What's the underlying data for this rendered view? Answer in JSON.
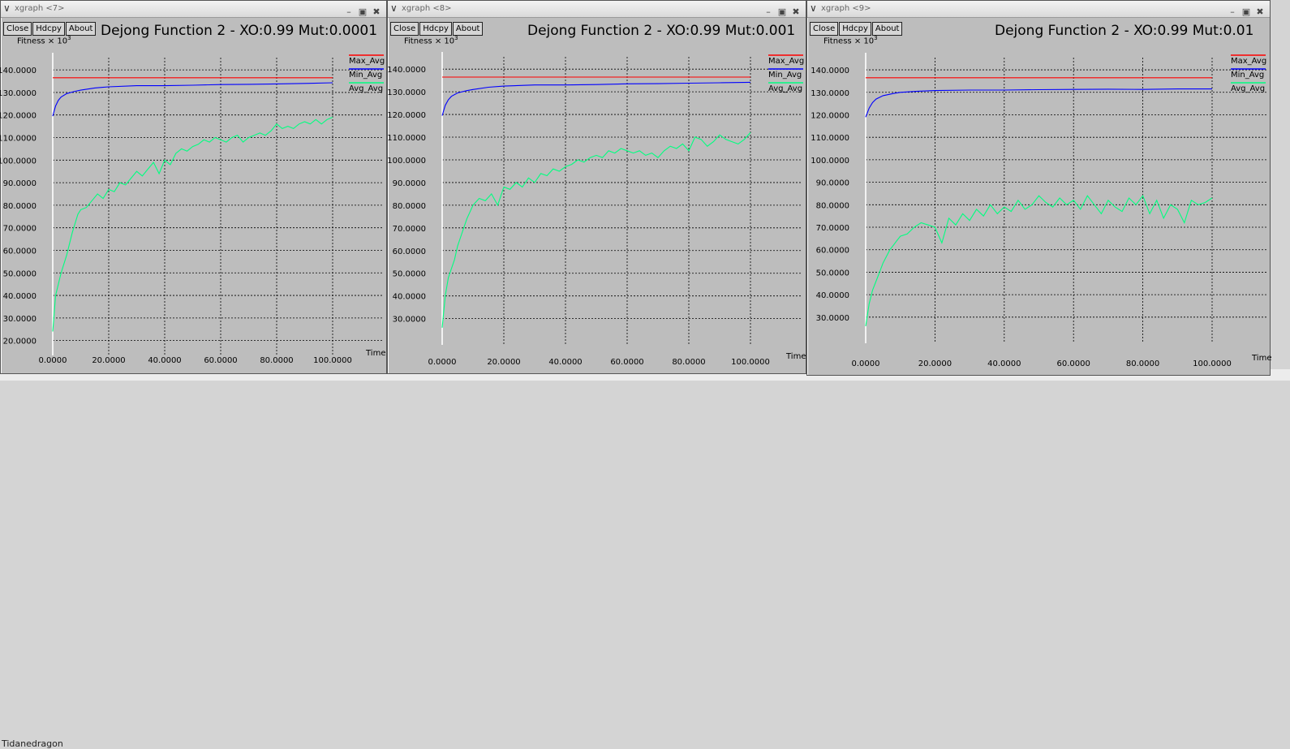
{
  "colors": {
    "max": "#ff0000",
    "min": "#0000ff",
    "avg": "#00ff80",
    "grid": "#000000",
    "bg": "#bdbdbd"
  },
  "background_text": "Tidanedragon",
  "windows": [
    {
      "title": "xgraph <7>",
      "buttons": [
        "Close",
        "Hdcpy",
        "About"
      ],
      "titlebar_icons": [
        "minimize-icon",
        "maximize-icon",
        "close-icon"
      ],
      "plot_title": "Dejong Function 2 - XO:0.99 Mut:0.0001",
      "chart_data": {
        "type": "line",
        "title": "Dejong Function 2 - XO:0.99 Mut:0.0001",
        "ylabel": "Fitness × 10^3",
        "xlabel": "Time",
        "ylim": [
          17.0,
          144.0
        ],
        "xlim": [
          0,
          100
        ],
        "xticks": [
          "0.0000",
          "20.0000",
          "40.0000",
          "60.0000",
          "80.0000",
          "100.0000"
        ],
        "yticks": [
          "20.0000",
          "30.0000",
          "40.0000",
          "50.0000",
          "60.0000",
          "70.0000",
          "80.0000",
          "90.0000",
          "100.0000",
          "110.0000",
          "120.0000",
          "130.0000",
          "140.0000"
        ],
        "grid": true,
        "legend_position": "right",
        "series": [
          {
            "name": "Max_Avg",
            "color": "#ff0000",
            "x": [
              0,
              100
            ],
            "y": [
              136.5,
              136.5
            ]
          },
          {
            "name": "Min_Avg",
            "color": "#0000ff",
            "x": [
              0,
              1,
              2,
              3,
              5,
              8,
              10,
              15,
              20,
              30,
              40,
              50,
              60,
              70,
              80,
              90,
              100
            ],
            "y": [
              119.5,
              124,
              126.5,
              128,
              129.5,
              130.5,
              131,
              132,
              132.5,
              133,
              133,
              133.2,
              133.5,
              133.6,
              133.8,
              134,
              134.3
            ]
          },
          {
            "name": "Avg_Avg",
            "color": "#00ff80",
            "x": [
              0,
              1,
              2,
              3,
              4,
              5,
              6,
              7,
              8,
              9,
              10,
              12,
              14,
              16,
              18,
              20,
              22,
              24,
              26,
              28,
              30,
              32,
              34,
              36,
              38,
              40,
              42,
              44,
              46,
              48,
              50,
              52,
              54,
              56,
              58,
              60,
              62,
              64,
              66,
              68,
              70,
              72,
              74,
              76,
              78,
              80,
              82,
              84,
              86,
              88,
              90,
              92,
              94,
              96,
              98,
              100
            ],
            "y": [
              24,
              40,
              45,
              50,
              54,
              58,
              63,
              68,
              72,
              76,
              78,
              79,
              82,
              85,
              83,
              87,
              86,
              90,
              89,
              92,
              95,
              93,
              96,
              99,
              94,
              100,
              98,
              103,
              105,
              104,
              106,
              107,
              109,
              108,
              110,
              109,
              108,
              110,
              111,
              108,
              110,
              111,
              112,
              111,
              113,
              116,
              114,
              115,
              114,
              116,
              117,
              116,
              118,
              116,
              118,
              119
            ]
          }
        ]
      }
    },
    {
      "title": "xgraph <8>",
      "buttons": [
        "Close",
        "Hdcpy",
        "About"
      ],
      "titlebar_icons": [
        "minimize-icon",
        "maximize-icon",
        "close-icon"
      ],
      "plot_title": "Dejong Function 2 - XO:0.99 Mut:0.001",
      "chart_data": {
        "type": "line",
        "title": "Dejong Function 2 - XO:0.99 Mut:0.001",
        "ylabel": "Fitness × 10^3",
        "xlabel": "Time",
        "ylim": [
          22.0,
          144.0
        ],
        "xlim": [
          0,
          100
        ],
        "xticks": [
          "0.0000",
          "20.0000",
          "40.0000",
          "60.0000",
          "80.0000",
          "100.0000"
        ],
        "yticks": [
          "30.0000",
          "40.0000",
          "50.0000",
          "60.0000",
          "70.0000",
          "80.0000",
          "90.0000",
          "100.0000",
          "110.0000",
          "120.0000",
          "130.0000",
          "140.0000"
        ],
        "grid": true,
        "legend_position": "right",
        "series": [
          {
            "name": "Max_Avg",
            "color": "#ff0000",
            "x": [
              0,
              100
            ],
            "y": [
              136.5,
              136.5
            ]
          },
          {
            "name": "Min_Avg",
            "color": "#0000ff",
            "x": [
              0,
              1,
              2,
              3,
              5,
              8,
              10,
              15,
              20,
              30,
              40,
              50,
              60,
              70,
              80,
              90,
              100
            ],
            "y": [
              119.5,
              124,
              126.5,
              128,
              129.5,
              130.5,
              131,
              132,
              132.5,
              133,
              133,
              133.2,
              133.5,
              133.6,
              133.8,
              134,
              134.2
            ]
          },
          {
            "name": "Avg_Avg",
            "color": "#00ff80",
            "x": [
              0,
              1,
              2,
              3,
              4,
              5,
              6,
              7,
              8,
              9,
              10,
              12,
              14,
              16,
              18,
              20,
              22,
              24,
              26,
              28,
              30,
              32,
              34,
              36,
              38,
              40,
              42,
              44,
              46,
              48,
              50,
              52,
              54,
              56,
              58,
              60,
              62,
              64,
              66,
              68,
              70,
              72,
              74,
              76,
              78,
              80,
              82,
              84,
              86,
              88,
              90,
              92,
              94,
              96,
              98,
              100
            ],
            "y": [
              26,
              40,
              48,
              52,
              56,
              62,
              66,
              70,
              74,
              77,
              80,
              83,
              82,
              85,
              80,
              88,
              87,
              90,
              88,
              92,
              90,
              94,
              93,
              96,
              95,
              97,
              98,
              100,
              99,
              101,
              102,
              101,
              104,
              103,
              105,
              104,
              103,
              104,
              102,
              103,
              101,
              104,
              106,
              105,
              107,
              104,
              110,
              109,
              106,
              108,
              111,
              109,
              108,
              107,
              109,
              112
            ]
          }
        ]
      }
    },
    {
      "title": "xgraph <9>",
      "buttons": [
        "Close",
        "Hdcpy",
        "About"
      ],
      "titlebar_icons": [
        "minimize-icon",
        "maximize-icon",
        "close-icon"
      ],
      "plot_title": "Dejong Function 2 - XO:0.99 Mut:0.01",
      "chart_data": {
        "type": "line",
        "title": "Dejong Function 2 - XO:0.99 Mut:0.01",
        "ylabel": "Fitness × 10^3",
        "xlabel": "Time",
        "ylim": [
          22.0,
          144.0
        ],
        "xlim": [
          0,
          100
        ],
        "xticks": [
          "0.0000",
          "20.0000",
          "40.0000",
          "60.0000",
          "80.0000",
          "100.0000"
        ],
        "yticks": [
          "30.0000",
          "40.0000",
          "50.0000",
          "60.0000",
          "70.0000",
          "80.0000",
          "90.0000",
          "100.0000",
          "110.0000",
          "120.0000",
          "130.0000",
          "140.0000"
        ],
        "grid": true,
        "legend_position": "right",
        "series": [
          {
            "name": "Max_Avg",
            "color": "#ff0000",
            "x": [
              0,
              100
            ],
            "y": [
              136.5,
              136.5
            ]
          },
          {
            "name": "Min_Avg",
            "color": "#0000ff",
            "x": [
              0,
              1,
              2,
              3,
              5,
              8,
              10,
              15,
              20,
              30,
              40,
              50,
              60,
              70,
              80,
              90,
              100
            ],
            "y": [
              119,
              123,
              125.5,
              127,
              128.5,
              129.5,
              130,
              130.5,
              130.8,
              131,
              131,
              131.2,
              131.3,
              131.4,
              131.3,
              131.5,
              131.5
            ]
          },
          {
            "name": "Avg_Avg",
            "color": "#00ff80",
            "x": [
              0,
              1,
              2,
              3,
              4,
              5,
              6,
              7,
              8,
              9,
              10,
              12,
              14,
              16,
              18,
              20,
              22,
              24,
              26,
              28,
              30,
              32,
              34,
              36,
              38,
              40,
              42,
              44,
              46,
              48,
              50,
              52,
              54,
              56,
              58,
              60,
              62,
              64,
              66,
              68,
              70,
              72,
              74,
              76,
              78,
              80,
              82,
              84,
              86,
              88,
              90,
              92,
              94,
              96,
              98,
              100
            ],
            "y": [
              26,
              36,
              42,
              46,
              50,
              54,
              57,
              60,
              62,
              64,
              66,
              67,
              70,
              72,
              71,
              70,
              63,
              74,
              71,
              76,
              73,
              78,
              75,
              80,
              76,
              79,
              77,
              82,
              78,
              80,
              84,
              81,
              79,
              83,
              80,
              82,
              78,
              84,
              80,
              76,
              82,
              79,
              77,
              83,
              80,
              84,
              76,
              82,
              74,
              80,
              78,
              72,
              82,
              80,
              81,
              83
            ]
          }
        ]
      }
    }
  ]
}
